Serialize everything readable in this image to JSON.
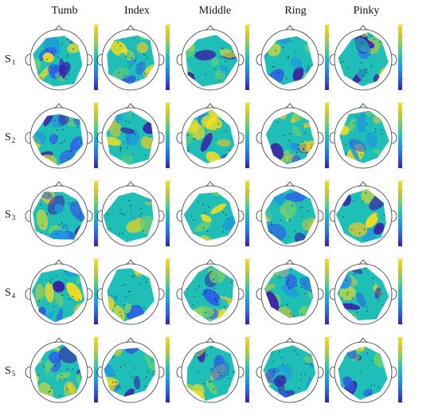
{
  "columns": [
    "Tumb",
    "Index",
    "Middle",
    "Ring",
    "Pinky"
  ],
  "rows": [
    {
      "label": "S",
      "subscript": "1"
    },
    {
      "label": "S",
      "subscript": "2"
    },
    {
      "label": "S",
      "subscript": "3"
    },
    {
      "label": "S",
      "subscript": "4"
    },
    {
      "label": "S",
      "subscript": "5"
    }
  ],
  "colormap": [
    "#3b1fa8",
    "#2f5ee6",
    "#1f96e0",
    "#1fbfb8",
    "#6ccf6f",
    "#c8c73b",
    "#f4dd1f"
  ]
}
